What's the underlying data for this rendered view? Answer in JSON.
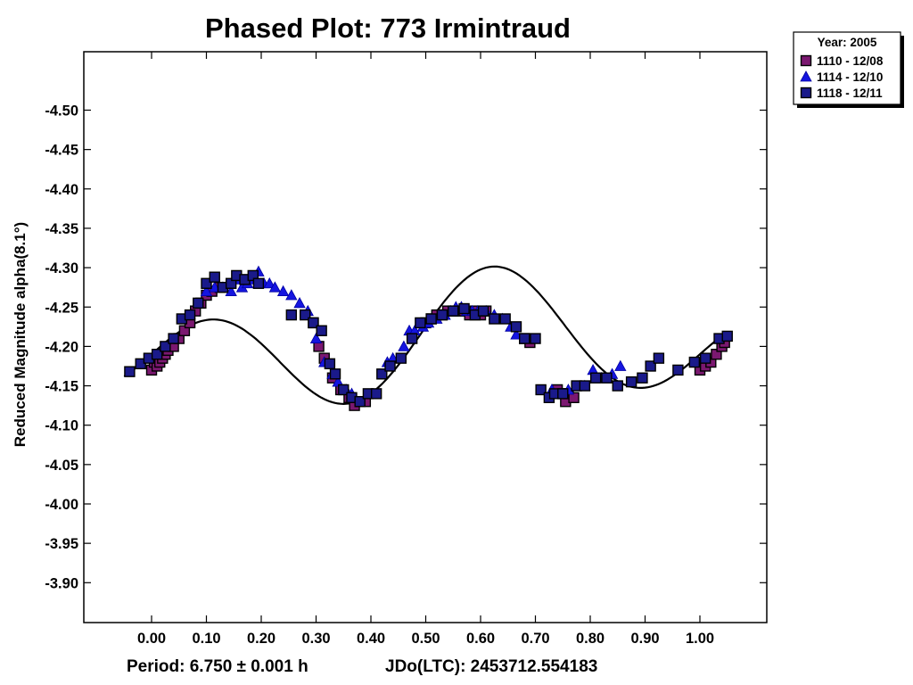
{
  "chart_data": {
    "type": "scatter",
    "title": "Phased Plot: 773 Irmintraud",
    "xlabel": "",
    "ylabel": "Reduced Magnitude alpha(8.1°)",
    "xlim": [
      -0.1,
      1.1
    ],
    "ylim": [
      -4.55,
      -3.85
    ],
    "y_inverted": true,
    "x_ticks": [
      0.0,
      0.1,
      0.2,
      0.3,
      0.4,
      0.5,
      0.6,
      0.7,
      0.8,
      0.9,
      1.0
    ],
    "x_tick_labels": [
      "0.00",
      "0.10",
      "0.20",
      "0.30",
      "0.40",
      "0.50",
      "0.60",
      "0.70",
      "0.80",
      "0.90",
      "1.00"
    ],
    "y_ticks": [
      -4.5,
      -4.45,
      -4.4,
      -4.35,
      -4.3,
      -4.25,
      -4.2,
      -4.15,
      -4.1,
      -4.05,
      -4.0,
      -3.95,
      -3.9
    ],
    "y_tick_labels": [
      "-4.50",
      "-4.45",
      "-4.40",
      "-4.35",
      "-4.30",
      "-4.25",
      "-4.20",
      "-4.15",
      "-4.10",
      "-4.05",
      "-4.00",
      "-3.95",
      "-3.90"
    ],
    "grid": false,
    "legend": {
      "title": "Year: 2005",
      "placement": "outside-top-right"
    },
    "series": [
      {
        "name": "1110 - 12/08",
        "marker": "square",
        "color": "#7b1870",
        "points": [
          [
            0.0,
            -4.17
          ],
          [
            0.005,
            -4.18
          ],
          [
            0.01,
            -4.175
          ],
          [
            0.015,
            -4.18
          ],
          [
            0.02,
            -4.185
          ],
          [
            0.025,
            -4.19
          ],
          [
            0.03,
            -4.195
          ],
          [
            0.04,
            -4.2
          ],
          [
            0.05,
            -4.21
          ],
          [
            0.06,
            -4.22
          ],
          [
            0.07,
            -4.23
          ],
          [
            0.08,
            -4.245
          ],
          [
            0.09,
            -4.255
          ],
          [
            0.1,
            -4.265
          ],
          [
            0.11,
            -4.27
          ],
          [
            0.125,
            -4.275
          ],
          [
            0.295,
            -4.23
          ],
          [
            0.305,
            -4.2
          ],
          [
            0.315,
            -4.185
          ],
          [
            0.33,
            -4.16
          ],
          [
            0.345,
            -4.145
          ],
          [
            0.36,
            -4.135
          ],
          [
            0.37,
            -4.125
          ],
          [
            0.38,
            -4.13
          ],
          [
            0.39,
            -4.13
          ],
          [
            0.5,
            -4.23
          ],
          [
            0.51,
            -4.235
          ],
          [
            0.52,
            -4.24
          ],
          [
            0.53,
            -4.24
          ],
          [
            0.54,
            -4.245
          ],
          [
            0.55,
            -4.245
          ],
          [
            0.56,
            -4.245
          ],
          [
            0.57,
            -4.245
          ],
          [
            0.58,
            -4.24
          ],
          [
            0.59,
            -4.245
          ],
          [
            0.6,
            -4.24
          ],
          [
            0.61,
            -4.245
          ],
          [
            0.68,
            -4.21
          ],
          [
            0.69,
            -4.205
          ],
          [
            0.74,
            -4.145
          ],
          [
            0.75,
            -4.14
          ],
          [
            0.755,
            -4.13
          ],
          [
            0.76,
            -4.14
          ],
          [
            0.77,
            -4.135
          ],
          [
            1.0,
            -4.17
          ],
          [
            1.01,
            -4.175
          ],
          [
            1.02,
            -4.18
          ],
          [
            1.03,
            -4.19
          ],
          [
            1.04,
            -4.2
          ],
          [
            1.045,
            -4.205
          ]
        ]
      },
      {
        "name": "1114 - 12/10",
        "marker": "triangle",
        "color": "#1515e0",
        "points": [
          [
            0.1,
            -4.27
          ],
          [
            0.115,
            -4.275
          ],
          [
            0.13,
            -4.275
          ],
          [
            0.145,
            -4.27
          ],
          [
            0.155,
            -4.285
          ],
          [
            0.165,
            -4.275
          ],
          [
            0.175,
            -4.28
          ],
          [
            0.185,
            -4.285
          ],
          [
            0.195,
            -4.295
          ],
          [
            0.205,
            -4.28
          ],
          [
            0.215,
            -4.28
          ],
          [
            0.225,
            -4.275
          ],
          [
            0.24,
            -4.27
          ],
          [
            0.255,
            -4.265
          ],
          [
            0.27,
            -4.255
          ],
          [
            0.285,
            -4.245
          ],
          [
            0.3,
            -4.21
          ],
          [
            0.315,
            -4.18
          ],
          [
            0.33,
            -4.165
          ],
          [
            0.34,
            -4.155
          ],
          [
            0.355,
            -4.145
          ],
          [
            0.365,
            -4.14
          ],
          [
            0.43,
            -4.18
          ],
          [
            0.44,
            -4.185
          ],
          [
            0.46,
            -4.2
          ],
          [
            0.47,
            -4.22
          ],
          [
            0.48,
            -4.22
          ],
          [
            0.495,
            -4.225
          ],
          [
            0.505,
            -4.23
          ],
          [
            0.52,
            -4.235
          ],
          [
            0.535,
            -4.24
          ],
          [
            0.545,
            -4.245
          ],
          [
            0.555,
            -4.25
          ],
          [
            0.565,
            -4.25
          ],
          [
            0.575,
            -4.245
          ],
          [
            0.585,
            -4.245
          ],
          [
            0.595,
            -4.245
          ],
          [
            0.61,
            -4.245
          ],
          [
            0.625,
            -4.24
          ],
          [
            0.64,
            -4.235
          ],
          [
            0.655,
            -4.225
          ],
          [
            0.665,
            -4.215
          ],
          [
            0.73,
            -4.145
          ],
          [
            0.745,
            -4.14
          ],
          [
            0.76,
            -4.145
          ],
          [
            0.79,
            -4.15
          ],
          [
            0.805,
            -4.17
          ],
          [
            0.82,
            -4.16
          ],
          [
            0.84,
            -4.165
          ],
          [
            0.855,
            -4.175
          ]
        ]
      },
      {
        "name": "1118 - 12/11",
        "marker": "square",
        "color": "#1a1a8a",
        "points": [
          [
            -0.04,
            -4.168
          ],
          [
            -0.02,
            -4.178
          ],
          [
            -0.005,
            -4.185
          ],
          [
            0.01,
            -4.19
          ],
          [
            0.025,
            -4.2
          ],
          [
            0.04,
            -4.21
          ],
          [
            0.055,
            -4.235
          ],
          [
            0.07,
            -4.24
          ],
          [
            0.085,
            -4.255
          ],
          [
            0.1,
            -4.28
          ],
          [
            0.115,
            -4.288
          ],
          [
            0.13,
            -4.275
          ],
          [
            0.145,
            -4.28
          ],
          [
            0.155,
            -4.29
          ],
          [
            0.17,
            -4.285
          ],
          [
            0.185,
            -4.29
          ],
          [
            0.195,
            -4.28
          ],
          [
            0.255,
            -4.24
          ],
          [
            0.28,
            -4.24
          ],
          [
            0.295,
            -4.23
          ],
          [
            0.31,
            -4.22
          ],
          [
            0.325,
            -4.178
          ],
          [
            0.335,
            -4.165
          ],
          [
            0.35,
            -4.145
          ],
          [
            0.365,
            -4.135
          ],
          [
            0.38,
            -4.13
          ],
          [
            0.395,
            -4.14
          ],
          [
            0.41,
            -4.14
          ],
          [
            0.42,
            -4.165
          ],
          [
            0.435,
            -4.175
          ],
          [
            0.455,
            -4.185
          ],
          [
            0.475,
            -4.21
          ],
          [
            0.49,
            -4.23
          ],
          [
            0.51,
            -4.235
          ],
          [
            0.53,
            -4.24
          ],
          [
            0.55,
            -4.245
          ],
          [
            0.57,
            -4.248
          ],
          [
            0.59,
            -4.24
          ],
          [
            0.605,
            -4.245
          ],
          [
            0.625,
            -4.235
          ],
          [
            0.645,
            -4.235
          ],
          [
            0.665,
            -4.225
          ],
          [
            0.68,
            -4.21
          ],
          [
            0.7,
            -4.21
          ],
          [
            0.71,
            -4.145
          ],
          [
            0.725,
            -4.135
          ],
          [
            0.735,
            -4.14
          ],
          [
            0.75,
            -4.14
          ],
          [
            0.775,
            -4.15
          ],
          [
            0.79,
            -4.15
          ],
          [
            0.81,
            -4.16
          ],
          [
            0.83,
            -4.16
          ],
          [
            0.85,
            -4.15
          ],
          [
            0.875,
            -4.155
          ],
          [
            0.895,
            -4.16
          ],
          [
            0.91,
            -4.175
          ],
          [
            0.925,
            -4.185
          ],
          [
            0.96,
            -4.17
          ],
          [
            0.99,
            -4.18
          ],
          [
            1.01,
            -4.185
          ],
          [
            1.035,
            -4.21
          ],
          [
            1.05,
            -4.213
          ]
        ]
      }
    ],
    "fit_curve": {
      "color": "#000000",
      "x_range": [
        -0.05,
        1.05
      ],
      "mean": -4.2035,
      "harmonics": [
        {
          "k": 1,
          "a": 0.0175,
          "b": 0.0305
        },
        {
          "k": 2,
          "a": -0.004,
          "b": -0.064
        }
      ]
    },
    "footer": {
      "period": "Period: 6.750 ± 0.001 h",
      "epoch": "JDo(LTC): 2453712.554183"
    }
  }
}
